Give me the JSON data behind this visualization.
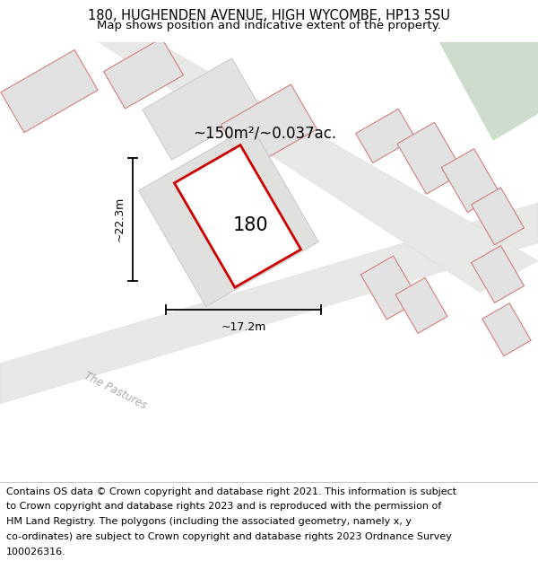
{
  "title_line1": "180, HUGHENDEN AVENUE, HIGH WYCOMBE, HP13 5SU",
  "title_line2": "Map shows position and indicative extent of the property.",
  "footer_lines": [
    "Contains OS data © Crown copyright and database right 2021. This information is subject",
    "to Crown copyright and database rights 2023 and is reproduced with the permission of",
    "HM Land Registry. The polygons (including the associated geometry, namely x, y",
    "co-ordinates) are subject to Crown copyright and database rights 2023 Ordnance Survey",
    "100026316."
  ],
  "map_bg": "#f7f7f5",
  "red_color": "#cc0000",
  "pink_color": "#d08080",
  "building_fill": "#e2e2e2",
  "building_edge": "#c8c8c8",
  "green_color": "#cddccc",
  "road_label": "The Pastures",
  "area_label": "~150m²/~0.037ac.",
  "number_label": "180",
  "dim_width": "~17.2m",
  "dim_height": "~22.3m",
  "title_fontsize": 10.5,
  "subtitle_fontsize": 9.5,
  "footer_fontsize": 8.0
}
